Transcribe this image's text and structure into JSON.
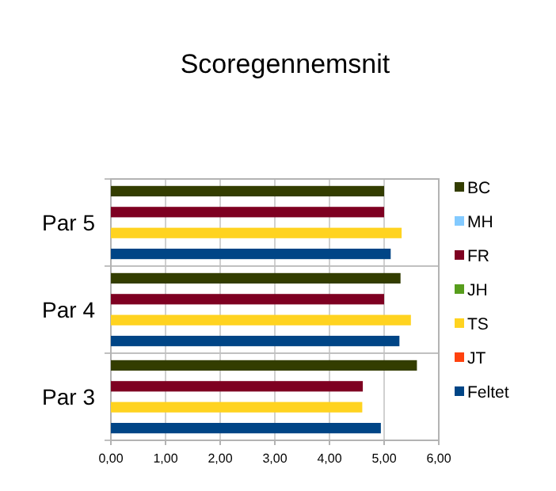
{
  "chart_data": {
    "type": "bar",
    "orientation": "horizontal",
    "title": "Scoregennemsnit",
    "categories": [
      "Par 5",
      "Par 4",
      "Par 3"
    ],
    "series": [
      {
        "name": "BC",
        "color": "#333d00",
        "values": [
          5.0,
          5.3,
          5.6
        ]
      },
      {
        "name": "MH",
        "color": "#83caff",
        "values": [
          null,
          null,
          null
        ]
      },
      {
        "name": "FR",
        "color": "#7e0021",
        "values": [
          5.0,
          5.0,
          4.61
        ]
      },
      {
        "name": "JH",
        "color": "#579d1c",
        "values": [
          null,
          null,
          null
        ]
      },
      {
        "name": "TS",
        "color": "#ffd320",
        "values": [
          5.32,
          5.49,
          4.6
        ]
      },
      {
        "name": "JT",
        "color": "#ff420e",
        "values": [
          null,
          null,
          null
        ]
      },
      {
        "name": "Feltet",
        "color": "#004586",
        "values": [
          5.12,
          5.28,
          4.94
        ]
      }
    ],
    "xlim": [
      0,
      6
    ],
    "xticks": [
      {
        "value": 0,
        "label": "0,00"
      },
      {
        "value": 1,
        "label": "1,00"
      },
      {
        "value": 2,
        "label": "2,00"
      },
      {
        "value": 3,
        "label": "3,00"
      },
      {
        "value": 4,
        "label": "4,00"
      },
      {
        "value": 5,
        "label": "5,00"
      },
      {
        "value": 6,
        "label": "6,00"
      }
    ],
    "grid": true,
    "legend": "right"
  }
}
